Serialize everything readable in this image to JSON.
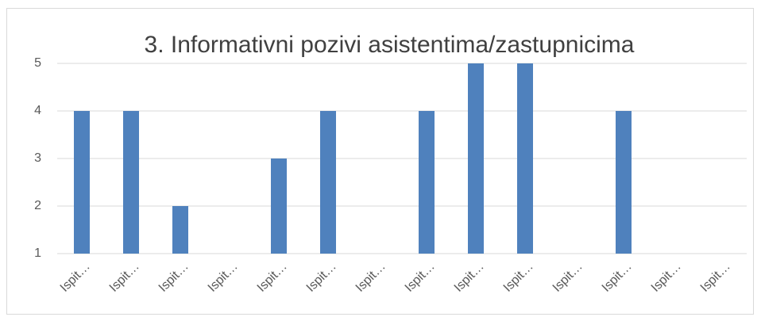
{
  "chart_data": {
    "type": "bar",
    "title": "3. Informativni pozivi asistentima/zastupnicima",
    "categories": [
      "Ispit…",
      "Ispit…",
      "Ispit…",
      "Ispit…",
      "Ispit…",
      "Ispit…",
      "Ispit…",
      "Ispit…",
      "Ispit…",
      "Ispit…",
      "Ispit…",
      "Ispit…",
      "Ispit…",
      "Ispit…"
    ],
    "values": [
      4,
      4,
      2,
      1,
      3,
      4,
      1,
      4,
      5,
      5,
      1,
      4,
      1,
      1
    ],
    "color": "#4f81bd",
    "ylim": [
      1,
      5
    ],
    "yticks": [
      1,
      2,
      3,
      4,
      5
    ],
    "grid": true
  }
}
